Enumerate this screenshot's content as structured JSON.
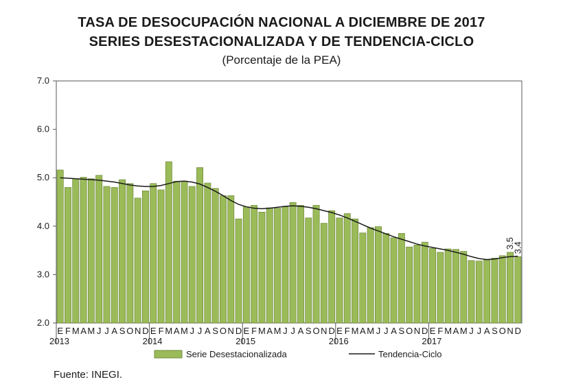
{
  "header": {
    "title_line1": "TASA DE DESOCUPACIÓN NACIONAL A DICIEMBRE DE 2017",
    "title_line2": "SERIES DESESTACIONALIZADA Y DE TENDENCIA-CICLO",
    "subtitle": "(Porcentaje de la PEA)"
  },
  "footer": {
    "source": "Fuente: INEGI."
  },
  "colors": {
    "bar": "#9bbb59",
    "bar_edge": "#5e7a2c",
    "trend": "#1a1a1a"
  },
  "chart_data": {
    "type": "bar",
    "ylim": [
      2.0,
      7.0
    ],
    "yticks": [
      "2.0",
      "3.0",
      "4.0",
      "5.0",
      "6.0",
      "7.0"
    ],
    "month_labels": [
      "E",
      "F",
      "M",
      "A",
      "M",
      "J",
      "J",
      "A",
      "S",
      "O",
      "N",
      "D"
    ],
    "years": [
      "2013",
      "2014",
      "2015",
      "2016",
      "2017"
    ],
    "legend": {
      "bar": "Serie Desestacionalizada",
      "line": "Tendencia-Ciclo",
      "placement": "bottom"
    },
    "annotations": [
      {
        "text": "3.5",
        "index": 58,
        "value": 3.46
      },
      {
        "text": "3.4",
        "index": 59,
        "value": 3.37
      }
    ],
    "series": [
      {
        "name": "Serie Desestacionalizada",
        "values": [
          5.16,
          4.8,
          4.98,
          5.01,
          4.98,
          5.05,
          4.82,
          4.8,
          4.96,
          4.88,
          4.58,
          4.73,
          4.88,
          4.75,
          5.33,
          4.93,
          4.93,
          4.82,
          5.21,
          4.89,
          4.78,
          4.63,
          4.63,
          4.15,
          4.4,
          4.43,
          4.29,
          4.38,
          4.37,
          4.4,
          4.49,
          4.43,
          4.17,
          4.43,
          4.06,
          4.32,
          4.17,
          4.26,
          4.15,
          3.86,
          3.97,
          3.99,
          3.85,
          3.76,
          3.85,
          3.57,
          3.61,
          3.67,
          3.54,
          3.46,
          3.53,
          3.52,
          3.48,
          3.29,
          3.28,
          3.3,
          3.34,
          3.39,
          3.46,
          3.37
        ]
      },
      {
        "name": "Tendencia-Ciclo",
        "values": [
          5.0,
          4.99,
          4.98,
          4.97,
          4.96,
          4.95,
          4.93,
          4.91,
          4.88,
          4.85,
          4.83,
          4.82,
          4.82,
          4.84,
          4.88,
          4.92,
          4.93,
          4.91,
          4.87,
          4.8,
          4.72,
          4.63,
          4.53,
          4.45,
          4.4,
          4.37,
          4.36,
          4.37,
          4.39,
          4.41,
          4.42,
          4.41,
          4.39,
          4.36,
          4.32,
          4.28,
          4.23,
          4.17,
          4.1,
          4.03,
          3.96,
          3.9,
          3.84,
          3.78,
          3.73,
          3.68,
          3.63,
          3.59,
          3.56,
          3.53,
          3.5,
          3.46,
          3.42,
          3.37,
          3.33,
          3.31,
          3.32,
          3.35,
          3.37,
          3.38
        ]
      }
    ]
  }
}
